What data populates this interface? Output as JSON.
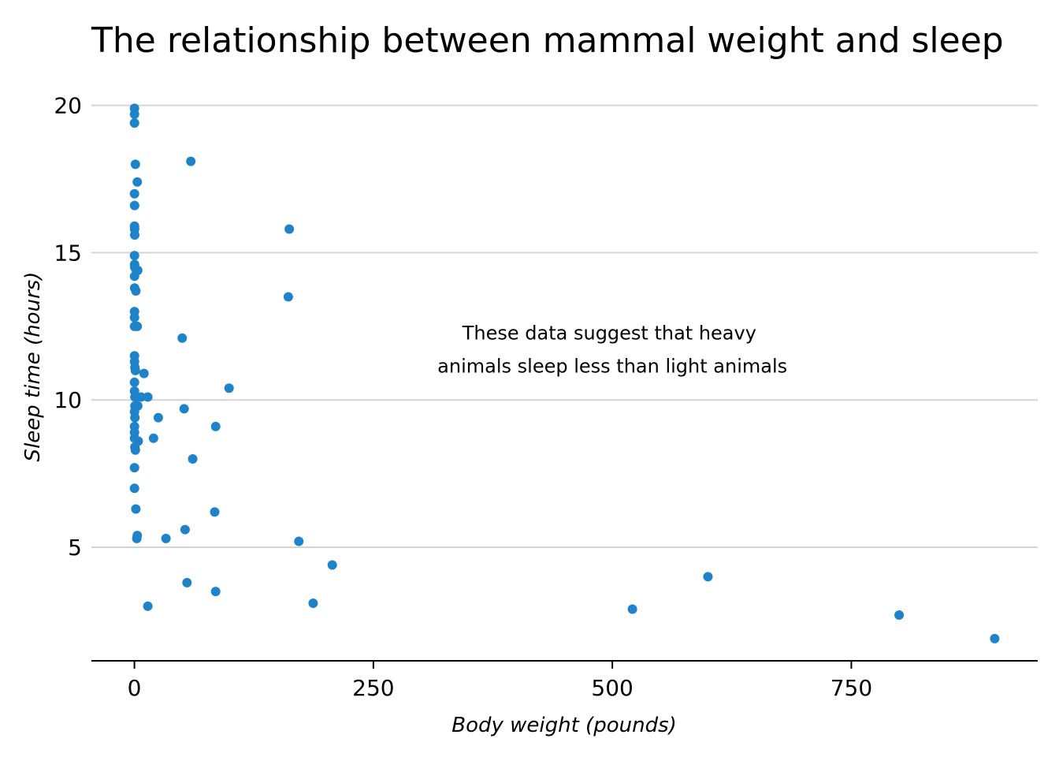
{
  "chart_data": {
    "type": "scatter",
    "title": "The relationship between mammal weight and sleep",
    "xlabel": "Body weight (pounds)",
    "ylabel": "Sleep time (hours)",
    "xlim": [
      -45,
      945
    ],
    "ylim": [
      1.2,
      20.9
    ],
    "x_ticks": [
      0,
      250,
      500,
      750
    ],
    "x_tick_labels": [
      "0",
      "250",
      "500",
      "750"
    ],
    "y_ticks": [
      5,
      10,
      15,
      20
    ],
    "y_tick_labels": [
      "5",
      "10",
      "15",
      "20"
    ],
    "grid": "horizontal",
    "point_color": "#1f83c9",
    "annotation": {
      "lines": [
        "These data suggest that heavy",
        "animals sleep less than light animals"
      ],
      "x": 500,
      "y": 12.0
    },
    "points": [
      {
        "x": 0.1,
        "y": 19.9
      },
      {
        "x": 0.1,
        "y": 19.7
      },
      {
        "x": 0.1,
        "y": 19.4
      },
      {
        "x": 1.0,
        "y": 18.0
      },
      {
        "x": 3.0,
        "y": 17.4
      },
      {
        "x": 0.1,
        "y": 17.0
      },
      {
        "x": 0.2,
        "y": 16.6
      },
      {
        "x": 0.1,
        "y": 15.9
      },
      {
        "x": 0.2,
        "y": 15.8
      },
      {
        "x": 0.3,
        "y": 15.6
      },
      {
        "x": 0.1,
        "y": 14.9
      },
      {
        "x": 0.2,
        "y": 14.6
      },
      {
        "x": 0.4,
        "y": 14.5
      },
      {
        "x": 2.0,
        "y": 14.4
      },
      {
        "x": 3.5,
        "y": 14.4
      },
      {
        "x": 0.1,
        "y": 14.2
      },
      {
        "x": 0.2,
        "y": 13.8
      },
      {
        "x": 1.5,
        "y": 13.7
      },
      {
        "x": 0.1,
        "y": 13.0
      },
      {
        "x": 0.1,
        "y": 12.8
      },
      {
        "x": 0.1,
        "y": 12.5
      },
      {
        "x": 3.0,
        "y": 12.5
      },
      {
        "x": 0.1,
        "y": 11.5
      },
      {
        "x": 0.1,
        "y": 11.3
      },
      {
        "x": 0.5,
        "y": 11.1
      },
      {
        "x": 1.0,
        "y": 11.0
      },
      {
        "x": 10.0,
        "y": 10.9
      },
      {
        "x": 0.1,
        "y": 10.6
      },
      {
        "x": 0.1,
        "y": 10.3
      },
      {
        "x": 0.5,
        "y": 10.1
      },
      {
        "x": 2.5,
        "y": 10.1
      },
      {
        "x": 7.0,
        "y": 10.1
      },
      {
        "x": 14.0,
        "y": 10.1
      },
      {
        "x": 0.5,
        "y": 9.8
      },
      {
        "x": 3.5,
        "y": 9.8
      },
      {
        "x": 0.1,
        "y": 9.6
      },
      {
        "x": 0.5,
        "y": 9.4
      },
      {
        "x": 25.0,
        "y": 9.4
      },
      {
        "x": 0.1,
        "y": 9.1
      },
      {
        "x": 0.1,
        "y": 8.9
      },
      {
        "x": 0.1,
        "y": 8.7
      },
      {
        "x": 20.0,
        "y": 8.7
      },
      {
        "x": 4.0,
        "y": 8.6
      },
      {
        "x": 0.5,
        "y": 8.4
      },
      {
        "x": 1.0,
        "y": 8.3
      },
      {
        "x": 0.1,
        "y": 7.7
      },
      {
        "x": 0.1,
        "y": 7.0
      },
      {
        "x": 1.5,
        "y": 6.3
      },
      {
        "x": 3.0,
        "y": 5.4
      },
      {
        "x": 2.5,
        "y": 5.3
      },
      {
        "x": 33.0,
        "y": 5.3
      },
      {
        "x": 53.0,
        "y": 5.6
      },
      {
        "x": 50.0,
        "y": 12.1
      },
      {
        "x": 52.0,
        "y": 9.7
      },
      {
        "x": 59.0,
        "y": 18.1
      },
      {
        "x": 61.0,
        "y": 8.0
      },
      {
        "x": 55.0,
        "y": 3.8
      },
      {
        "x": 14.0,
        "y": 3.0
      },
      {
        "x": 85.0,
        "y": 9.1
      },
      {
        "x": 84.0,
        "y": 6.2
      },
      {
        "x": 85.0,
        "y": 3.5
      },
      {
        "x": 99.0,
        "y": 10.4
      },
      {
        "x": 162.0,
        "y": 15.8
      },
      {
        "x": 161.0,
        "y": 13.5
      },
      {
        "x": 172.0,
        "y": 5.2
      },
      {
        "x": 187.0,
        "y": 3.1
      },
      {
        "x": 207.0,
        "y": 4.4
      },
      {
        "x": 521.0,
        "y": 2.9
      },
      {
        "x": 600.0,
        "y": 4.0
      },
      {
        "x": 800.0,
        "y": 2.7
      },
      {
        "x": 900.0,
        "y": 1.9
      }
    ]
  }
}
